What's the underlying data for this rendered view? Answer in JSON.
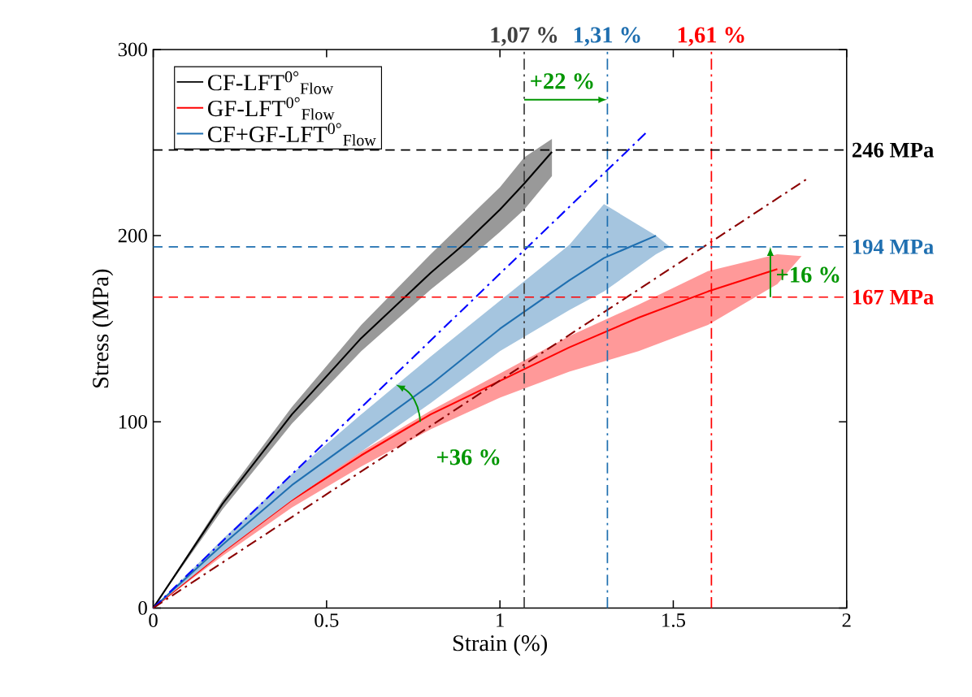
{
  "chart_data": {
    "type": "line",
    "xlabel": "Strain (%)",
    "ylabel": "Stress (MPa)",
    "xlim": [
      0,
      2
    ],
    "ylim": [
      0,
      300
    ],
    "xticks": [
      0,
      0.5,
      1,
      1.5,
      2
    ],
    "yticks": [
      0,
      100,
      200,
      300
    ],
    "legend": "top left",
    "line_style": "solid",
    "series": [
      {
        "name": "CF-LFT$^{0°}$$_{Flow}$",
        "color": "#000000",
        "x": [
          0,
          0.2,
          0.4,
          0.6,
          0.8,
          0.9,
          1.0,
          1.07,
          1.15
        ],
        "values": [
          0,
          56,
          104,
          145,
          180,
          196,
          214,
          228,
          245
        ],
        "lower": [
          0,
          53,
          99,
          138,
          171,
          186,
          202,
          214,
          232
        ],
        "upper": [
          0,
          58,
          108,
          152,
          190,
          208,
          226,
          242,
          252
        ]
      },
      {
        "name": "GF-LFT$^{0°}$$_{Flow}$",
        "color": "#ff0000",
        "x": [
          0,
          0.2,
          0.4,
          0.6,
          0.8,
          1.0,
          1.2,
          1.4,
          1.6,
          1.8,
          1.87
        ],
        "values": [
          0,
          30,
          58,
          82,
          104,
          122,
          140,
          156,
          170,
          182,
          null
        ],
        "lower": [
          0,
          28,
          54,
          76,
          96,
          113,
          127,
          138,
          152,
          174,
          189
        ],
        "upper": [
          0,
          32,
          60,
          84,
          106,
          126,
          146,
          163,
          181,
          190,
          189
        ]
      },
      {
        "name": "CF+GF-LFT$^{0°}$$_{Flow}$",
        "color": "#1f6fb0",
        "x": [
          0,
          0.2,
          0.4,
          0.6,
          0.8,
          1.0,
          1.2,
          1.3,
          1.45,
          1.49
        ],
        "values": [
          0,
          34,
          66,
          93,
          120,
          150,
          176,
          188,
          200,
          null
        ],
        "lower": [
          0,
          30,
          58,
          84,
          110,
          138,
          160,
          170,
          190,
          194
        ],
        "upper": [
          0,
          37,
          72,
          104,
          135,
          165,
          195,
          217,
          200,
          194
        ]
      },
      {
        "type": "line",
        "color": "#0000ff",
        "line_style": "dashdot",
        "x": [
          0,
          1.42
        ],
        "values": [
          0,
          255
        ]
      },
      {
        "type": "line",
        "color": "#8b0000",
        "line_style": "dashdot",
        "x": [
          0,
          1.89
        ],
        "values": [
          0,
          231
        ]
      }
    ],
    "ref_lines": [
      {
        "axis": "x",
        "value": 1.07,
        "label": "1,07 %",
        "color": "#404040",
        "line_style": "dashdot"
      },
      {
        "axis": "x",
        "value": 1.31,
        "label": "1,31 %",
        "color": "#1f6fb0",
        "line_style": "dashdot"
      },
      {
        "axis": "x",
        "value": 1.61,
        "label": "1,61 %",
        "color": "#ff0000",
        "line_style": "dashdot"
      },
      {
        "axis": "y",
        "value": 246,
        "label": "246 MPa",
        "color": "#000000",
        "line_style": "dashed"
      },
      {
        "axis": "y",
        "value": 194,
        "label": "194 MPa",
        "color": "#1f6fb0",
        "line_style": "dashed"
      },
      {
        "axis": "y",
        "value": 167,
        "label": "167 MPa",
        "color": "#ff0000",
        "line_style": "dashed"
      }
    ],
    "annotations": [
      "+22 %",
      "+36 %",
      "+16 %"
    ]
  }
}
